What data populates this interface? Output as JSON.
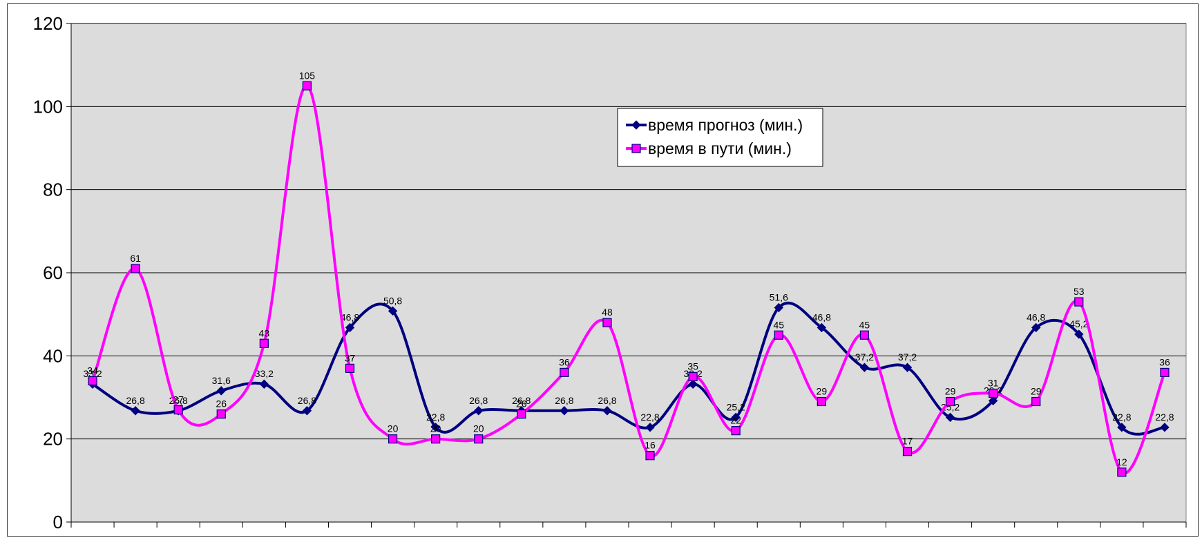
{
  "chart_data": {
    "type": "line",
    "smooth": true,
    "title": "",
    "xlabel": "",
    "ylabel": "",
    "ylim": [
      0,
      120
    ],
    "yticks": [
      0,
      20,
      40,
      60,
      80,
      100,
      120
    ],
    "grid": true,
    "legend_position": "top-right",
    "plot_background": "#dcdcdc",
    "x": [
      1,
      2,
      3,
      4,
      5,
      6,
      7,
      8,
      9,
      10,
      11,
      12,
      13,
      14,
      15,
      16,
      17,
      18,
      19,
      20,
      21,
      22,
      23,
      24,
      25,
      26
    ],
    "series": [
      {
        "name": "время прогноз (мин.)",
        "color": "#000080",
        "marker": "diamond",
        "values": [
          33.2,
          26.8,
          26.8,
          31.6,
          33.2,
          26.8,
          46.8,
          50.8,
          22.8,
          26.8,
          26.8,
          26.8,
          26.8,
          22.8,
          33.2,
          25.2,
          51.6,
          46.8,
          37.2,
          37.2,
          25.2,
          29.2,
          46.8,
          45.2,
          22.8,
          22.8
        ],
        "labels": [
          "33,2",
          "26,8",
          "26,8",
          "31,6",
          "33,2",
          "26,8",
          "46,8",
          "50,8",
          "22,8",
          "26,8",
          "26,8",
          "26,8",
          "26,8",
          "22,8",
          "33,2",
          "25,2",
          "51,6",
          "46,8",
          "37,2",
          "37,2",
          "25,2",
          "29,2",
          "46,8",
          "45,2",
          "22,8",
          "22,8"
        ]
      },
      {
        "name": "время в пути (мин.)",
        "color": "#ff00ff",
        "marker": "square",
        "values": [
          34,
          61,
          27,
          26,
          43,
          105,
          37,
          20,
          20,
          20,
          26,
          36,
          48,
          16,
          35,
          22,
          45,
          29,
          45,
          17,
          29,
          31,
          29,
          53,
          12,
          36
        ],
        "labels": [
          "34",
          "61",
          "27",
          "26",
          "43",
          "105",
          "37",
          "20",
          "20",
          "20",
          "26",
          "36",
          "48",
          "16",
          "35",
          "22",
          "45",
          "29",
          "45",
          "17",
          "29",
          "31",
          "29",
          "53",
          "12",
          "36"
        ]
      }
    ]
  }
}
